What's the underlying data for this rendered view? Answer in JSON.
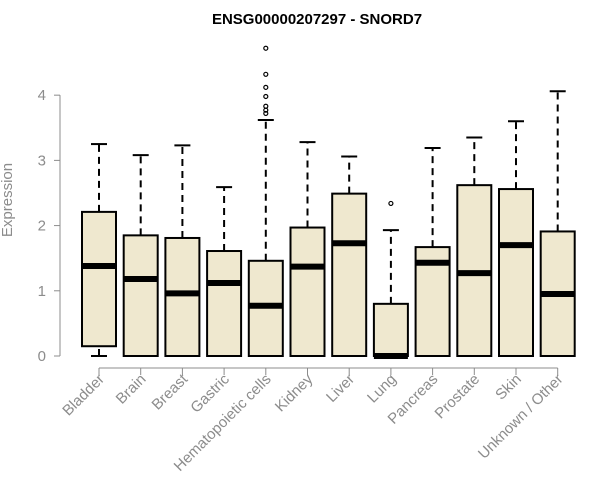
{
  "chart_data": {
    "type": "boxplot",
    "title": "ENSG00000207297 - SNORD7",
    "ylabel": "Expression",
    "ylim": [
      0,
      4.8
    ],
    "yticks": [
      0,
      1,
      2,
      3,
      4
    ],
    "box_fill": "#efe8cf",
    "box_stroke": "#000000",
    "outlier_color": "#000000",
    "categories": [
      "Bladder",
      "Brain",
      "Breast",
      "Gastric",
      "Hematopoietic cells",
      "Kidney",
      "Liver",
      "Lung",
      "Pancreas",
      "Prostate",
      "Skin",
      "Unknown / Other"
    ],
    "boxes": [
      {
        "min": 0.0,
        "q1": 0.15,
        "median": 1.38,
        "q3": 2.21,
        "max": 3.25,
        "outliers": []
      },
      {
        "min": 0.0,
        "q1": 0.0,
        "median": 1.18,
        "q3": 1.85,
        "max": 3.08,
        "outliers": []
      },
      {
        "min": 0.0,
        "q1": 0.0,
        "median": 0.96,
        "q3": 1.81,
        "max": 3.23,
        "outliers": []
      },
      {
        "min": 0.0,
        "q1": 0.0,
        "median": 1.12,
        "q3": 1.61,
        "max": 2.59,
        "outliers": []
      },
      {
        "min": 0.0,
        "q1": 0.0,
        "median": 0.77,
        "q3": 1.46,
        "max": 3.62,
        "outliers": [
          3.72,
          3.77,
          3.83,
          3.98,
          4.12,
          4.32,
          4.72
        ]
      },
      {
        "min": 0.0,
        "q1": 0.0,
        "median": 1.37,
        "q3": 1.97,
        "max": 3.28,
        "outliers": []
      },
      {
        "min": 0.0,
        "q1": 0.0,
        "median": 1.73,
        "q3": 2.49,
        "max": 3.06,
        "outliers": []
      },
      {
        "min": 0.0,
        "q1": 0.0,
        "median": 0.0,
        "q3": 0.8,
        "max": 1.93,
        "outliers": [
          2.34
        ]
      },
      {
        "min": 0.0,
        "q1": 0.0,
        "median": 1.43,
        "q3": 1.67,
        "max": 3.19,
        "outliers": []
      },
      {
        "min": 0.0,
        "q1": 0.0,
        "median": 1.27,
        "q3": 2.62,
        "max": 3.35,
        "outliers": []
      },
      {
        "min": 0.0,
        "q1": 0.0,
        "median": 1.7,
        "q3": 2.56,
        "max": 3.6,
        "outliers": []
      },
      {
        "min": 0.0,
        "q1": 0.0,
        "median": 0.95,
        "q3": 1.91,
        "max": 4.06,
        "outliers": []
      }
    ]
  }
}
